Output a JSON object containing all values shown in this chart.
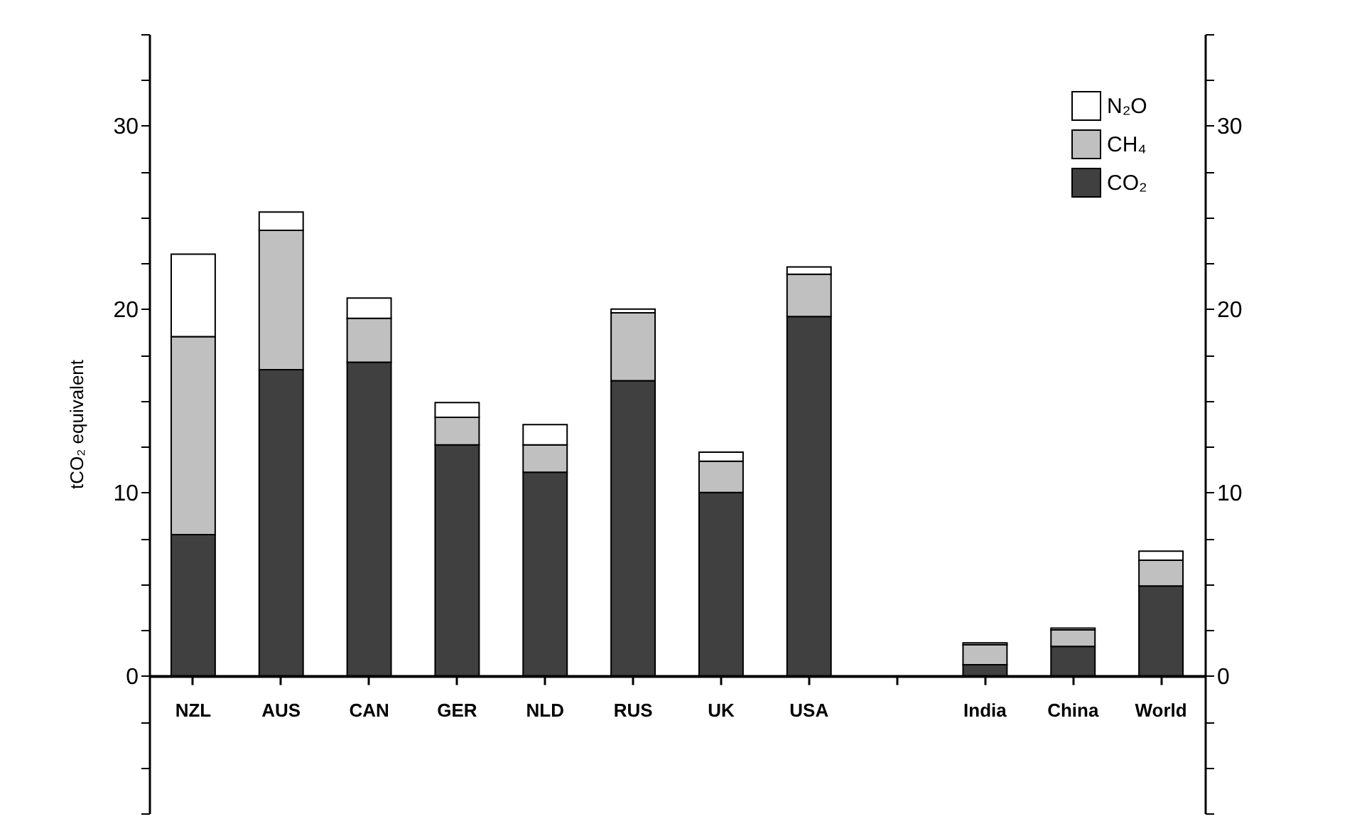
{
  "chart_data": {
    "type": "bar",
    "ylabel": "tCO₂ equivalent",
    "stacked": true,
    "legend": "top right",
    "categories": [
      "NZL",
      "AUS",
      "CAN",
      "GER",
      "NLD",
      "RUS",
      "UK",
      "USA",
      null,
      "India",
      "China",
      "World"
    ],
    "series": [
      {
        "name": "CO₂",
        "color": "#404040",
        "values": [
          7.7,
          16.7,
          17.1,
          12.6,
          11.1,
          16.1,
          10.0,
          19.6,
          null,
          0.6,
          1.6,
          4.9
        ]
      },
      {
        "name": "CH₄",
        "color": "#c0c0c0",
        "values": [
          10.8,
          7.6,
          2.4,
          1.5,
          1.5,
          3.7,
          1.7,
          2.3,
          null,
          1.1,
          0.9,
          1.4
        ]
      },
      {
        "name": "N₂O",
        "color": "#ffffff",
        "values": [
          4.5,
          1.0,
          1.1,
          0.8,
          1.1,
          0.2,
          0.5,
          0.4,
          null,
          0.1,
          0.1,
          0.5
        ]
      }
    ],
    "ylim": [
      -7.5,
      35
    ],
    "yticks": [
      {
        "value": -7.5,
        "label": null
      },
      {
        "value": -5,
        "label": null
      },
      {
        "value": -2.5,
        "label": null
      },
      0,
      {
        "value": 2.5,
        "label": null
      },
      {
        "value": 5,
        "label": null
      },
      {
        "value": 7.5,
        "label": null
      },
      10,
      {
        "value": 12.5,
        "label": null
      },
      {
        "value": 15,
        "label": null
      },
      {
        "value": 17.5,
        "label": null
      },
      20,
      {
        "value": 22.5,
        "label": null
      },
      {
        "value": 25,
        "label": null
      },
      {
        "value": 27.5,
        "label": null
      },
      30,
      {
        "value": 32.5,
        "label": null
      },
      {
        "value": 35,
        "label": null
      }
    ],
    "y2lim": [
      -7.5,
      35
    ],
    "y2ticks": [
      {
        "value": -7.5,
        "label": null
      },
      {
        "value": -5,
        "label": null
      },
      {
        "value": -2.5,
        "label": null
      },
      0,
      {
        "value": 2.5,
        "label": null
      },
      {
        "value": 5,
        "label": null
      },
      {
        "value": 7.5,
        "label": null
      },
      10,
      {
        "value": 12.5,
        "label": null
      },
      {
        "value": 15,
        "label": null
      },
      {
        "value": 17.5,
        "label": null
      },
      20,
      {
        "value": 22.5,
        "label": null
      },
      {
        "value": 25,
        "label": null
      },
      {
        "value": 27.5,
        "label": null
      },
      30,
      {
        "value": 32.5,
        "label": null
      },
      {
        "value": 35,
        "label": null
      }
    ]
  }
}
